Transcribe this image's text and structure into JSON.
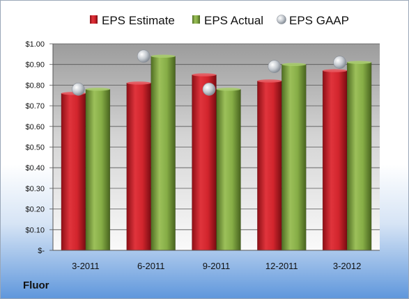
{
  "company": "Fluor",
  "chart_data": {
    "type": "bar",
    "categories": [
      "3-2011",
      "6-2011",
      "9-2011",
      "12-2011",
      "3-2012"
    ],
    "series": [
      {
        "name": "EPS Estimate",
        "values": [
          0.76,
          0.81,
          0.85,
          0.82,
          0.87
        ],
        "color": "#c8202a",
        "kind": "bar"
      },
      {
        "name": "EPS Actual",
        "values": [
          0.78,
          0.94,
          0.78,
          0.9,
          0.91
        ],
        "color": "#7fa645",
        "kind": "bar"
      },
      {
        "name": "EPS GAAP",
        "values": [
          0.78,
          0.94,
          0.78,
          0.89,
          0.91
        ],
        "color": "#b8bec6",
        "kind": "marker"
      }
    ],
    "y_ticks": [
      "$-",
      "$0.10",
      "$0.20",
      "$0.30",
      "$0.40",
      "$0.50",
      "$0.60",
      "$0.70",
      "$0.80",
      "$0.90",
      "$1.00"
    ],
    "ylim": [
      0,
      1.0
    ],
    "grid": true,
    "legend_position": "top",
    "title": "",
    "xlabel": "",
    "ylabel": ""
  }
}
